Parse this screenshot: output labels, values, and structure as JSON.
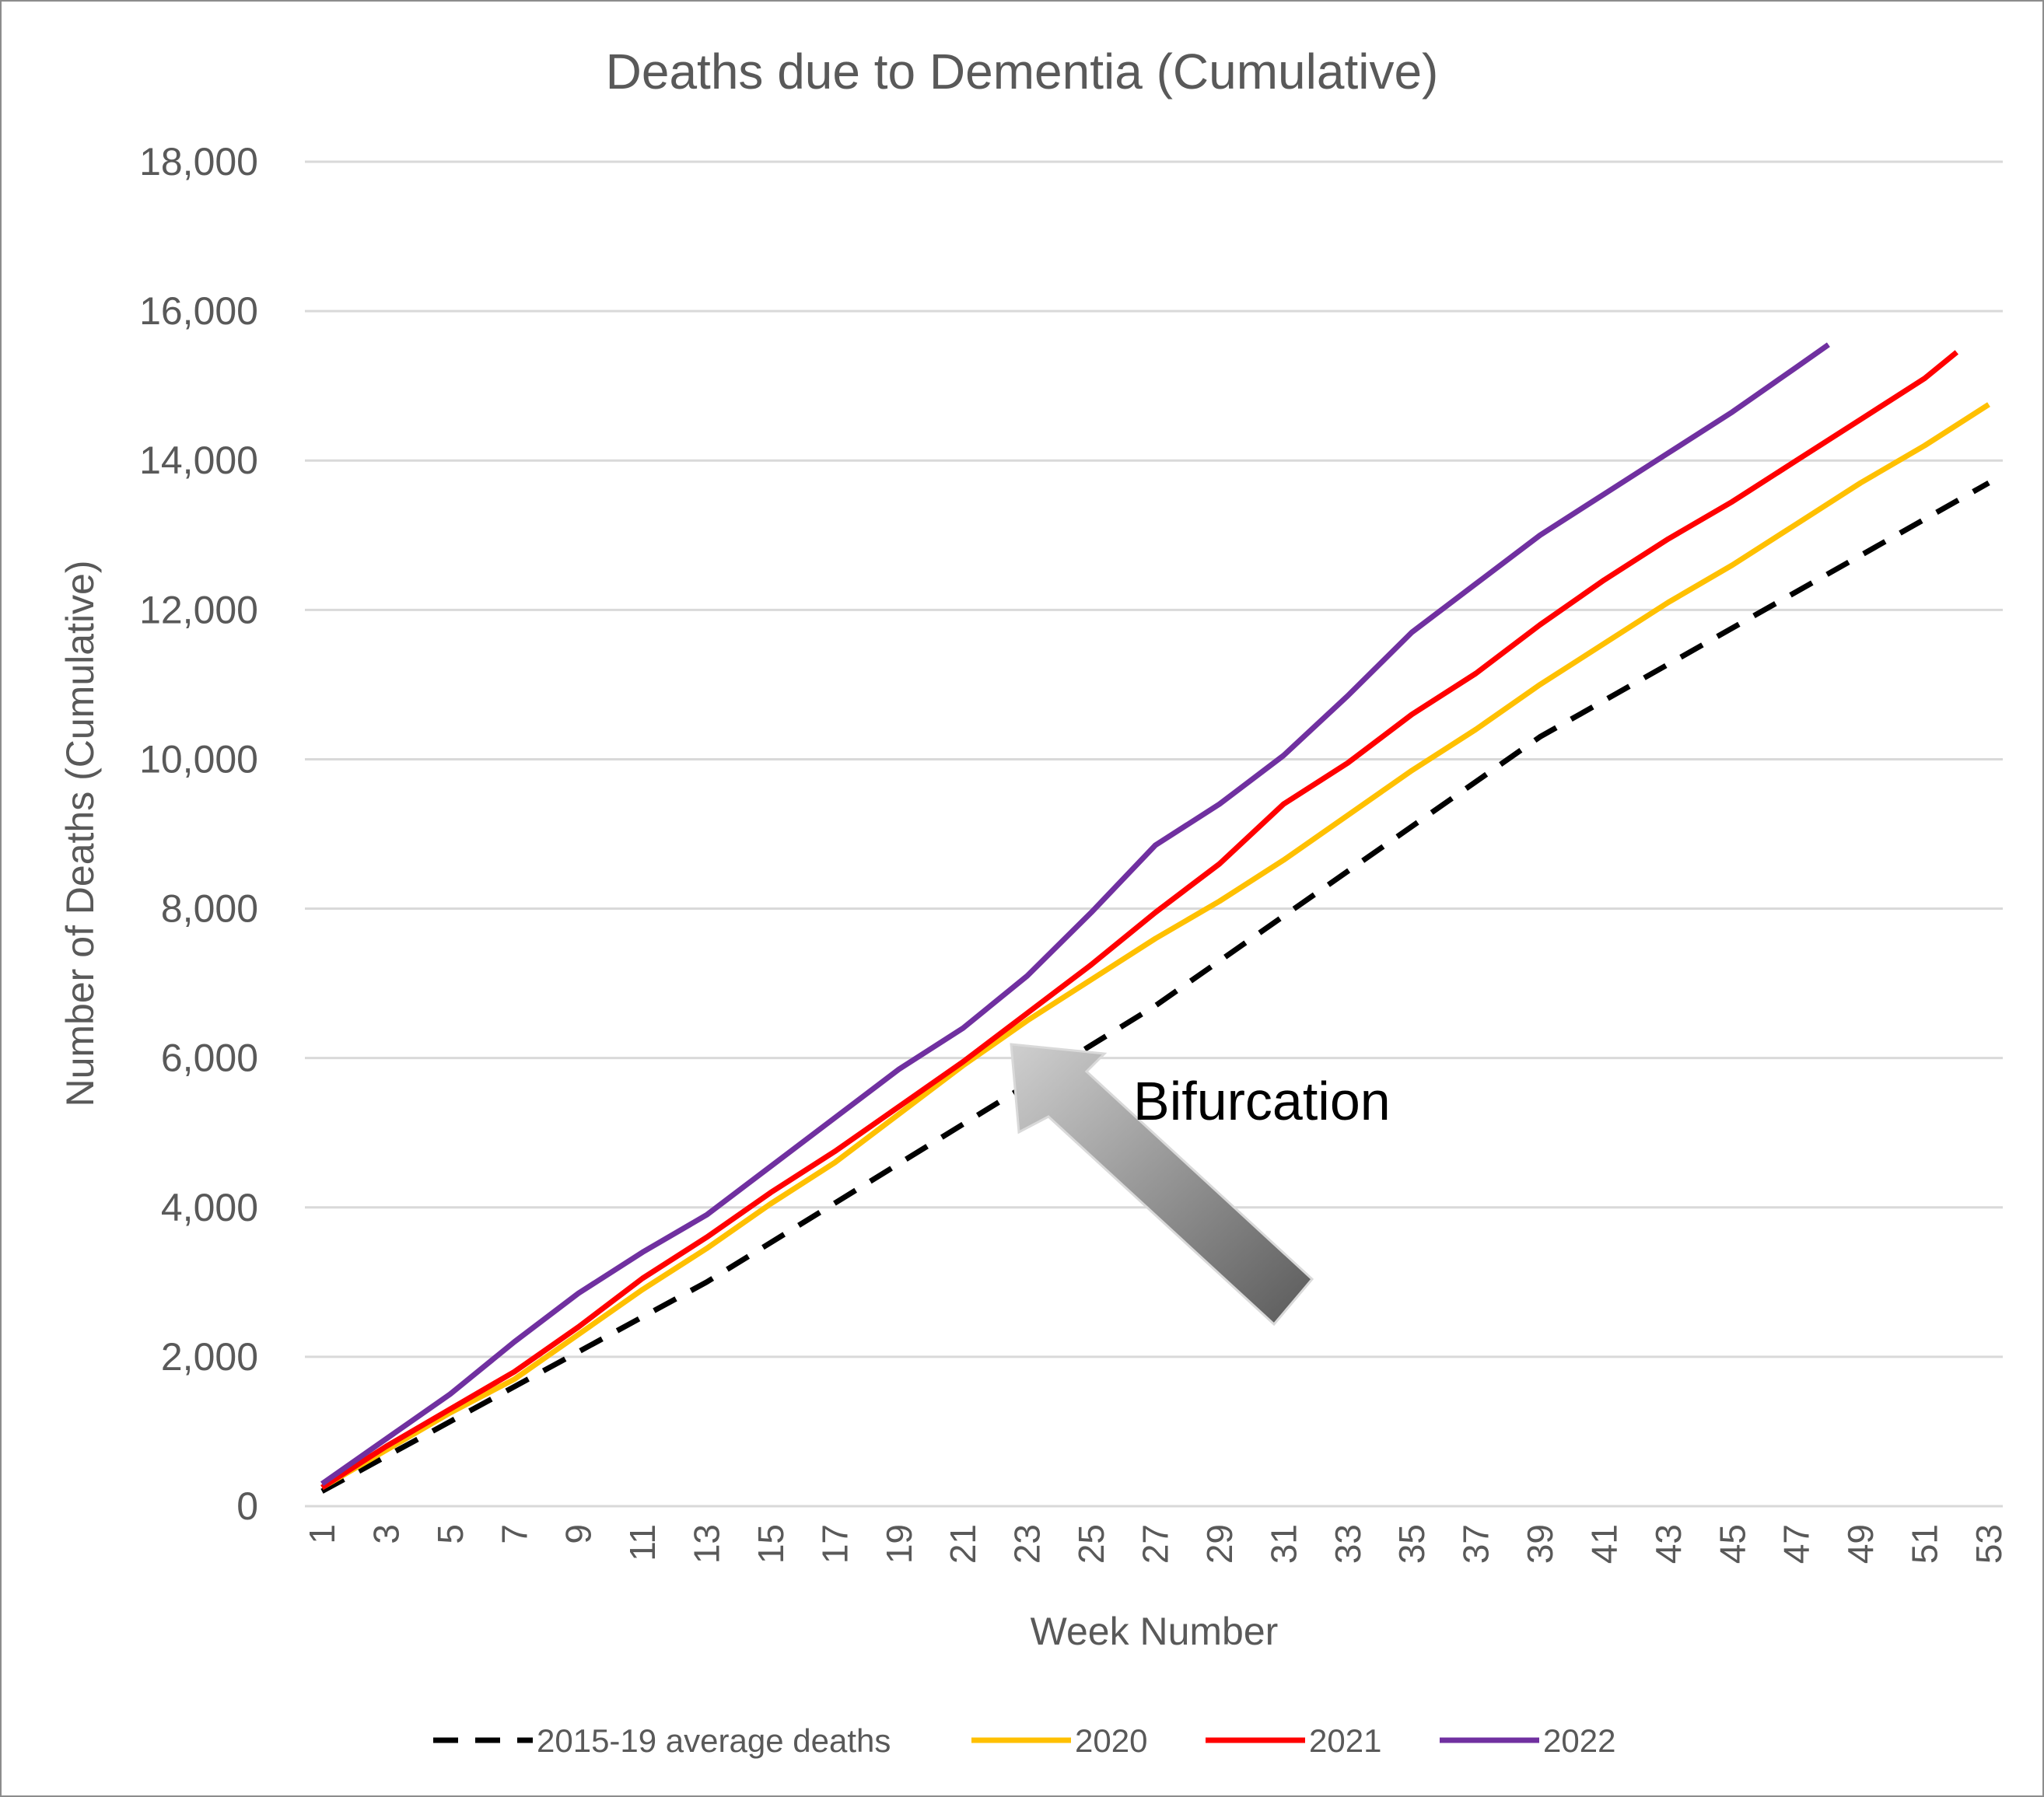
{
  "chart_data": {
    "type": "line",
    "title": "Deaths due to Dementia (Cumulative)",
    "xlabel": "Week Number",
    "ylabel": "Number of Deaths  (Cumulative)",
    "ylim": [
      0,
      18000
    ],
    "y_ticks": [
      0,
      2000,
      4000,
      6000,
      8000,
      10000,
      12000,
      14000,
      16000,
      18000
    ],
    "y_tick_labels": [
      "0",
      "2,000",
      "4,000",
      "6,000",
      "8,000",
      "10,000",
      "12,000",
      "14,000",
      "16,000",
      "18,000"
    ],
    "x_tick_labels": [
      "1",
      "3",
      "5",
      "7",
      "9",
      "11",
      "13",
      "15",
      "17",
      "19",
      "21",
      "23",
      "25",
      "27",
      "29",
      "31",
      "33",
      "35",
      "37",
      "39",
      "41",
      "43",
      "45",
      "47",
      "49",
      "51",
      "53"
    ],
    "grid": "horizontal",
    "legend_position": "bottom",
    "annotation": {
      "text": "Bifurcation",
      "x": 22,
      "y": 6300
    },
    "series": [
      {
        "name": "2015-19 average deaths",
        "color": "#000000",
        "dash": "dashed",
        "x": [
          1,
          13,
          27,
          39,
          53
        ],
        "y": [
          200,
          3000,
          6700,
          10300,
          13700
        ]
      },
      {
        "name": "2020",
        "color": "#ffc000",
        "dash": "solid",
        "x": [
          1,
          3,
          5,
          7,
          9,
          11,
          13,
          15,
          17,
          19,
          21,
          23,
          25,
          27,
          29,
          31,
          33,
          35,
          37,
          39,
          41,
          43,
          45,
          47,
          49,
          51,
          53
        ],
        "y": [
          250,
          750,
          1250,
          1700,
          2300,
          2900,
          3450,
          4050,
          4600,
          5250,
          5900,
          6500,
          7050,
          7600,
          8100,
          8650,
          9250,
          9850,
          10400,
          11000,
          11550,
          12100,
          12600,
          13150,
          13700,
          14200,
          14750
        ]
      },
      {
        "name": "2021",
        "color": "#ff0000",
        "dash": "solid",
        "x": [
          1,
          3,
          5,
          7,
          9,
          11,
          13,
          15,
          17,
          19,
          21,
          23,
          25,
          27,
          29,
          31,
          33,
          35,
          37,
          39,
          41,
          43,
          45,
          47,
          49,
          51,
          52
        ],
        "y": [
          250,
          800,
          1300,
          1800,
          2400,
          3050,
          3600,
          4200,
          4750,
          5350,
          5950,
          6600,
          7250,
          7950,
          8600,
          9400,
          9950,
          10600,
          11150,
          11800,
          12400,
          12950,
          13450,
          14000,
          14550,
          15100,
          15450
        ]
      },
      {
        "name": "2022",
        "color": "#7030a0",
        "dash": "solid",
        "x": [
          1,
          3,
          5,
          7,
          9,
          11,
          13,
          15,
          17,
          19,
          21,
          23,
          25,
          27,
          29,
          31,
          33,
          35,
          37,
          39,
          41,
          43,
          45,
          47,
          48
        ],
        "y": [
          300,
          900,
          1500,
          2200,
          2850,
          3400,
          3900,
          4550,
          5200,
          5850,
          6400,
          7100,
          7950,
          8850,
          9400,
          10050,
          10850,
          11700,
          12350,
          13000,
          13550,
          14100,
          14650,
          15250,
          15550
        ]
      }
    ]
  }
}
